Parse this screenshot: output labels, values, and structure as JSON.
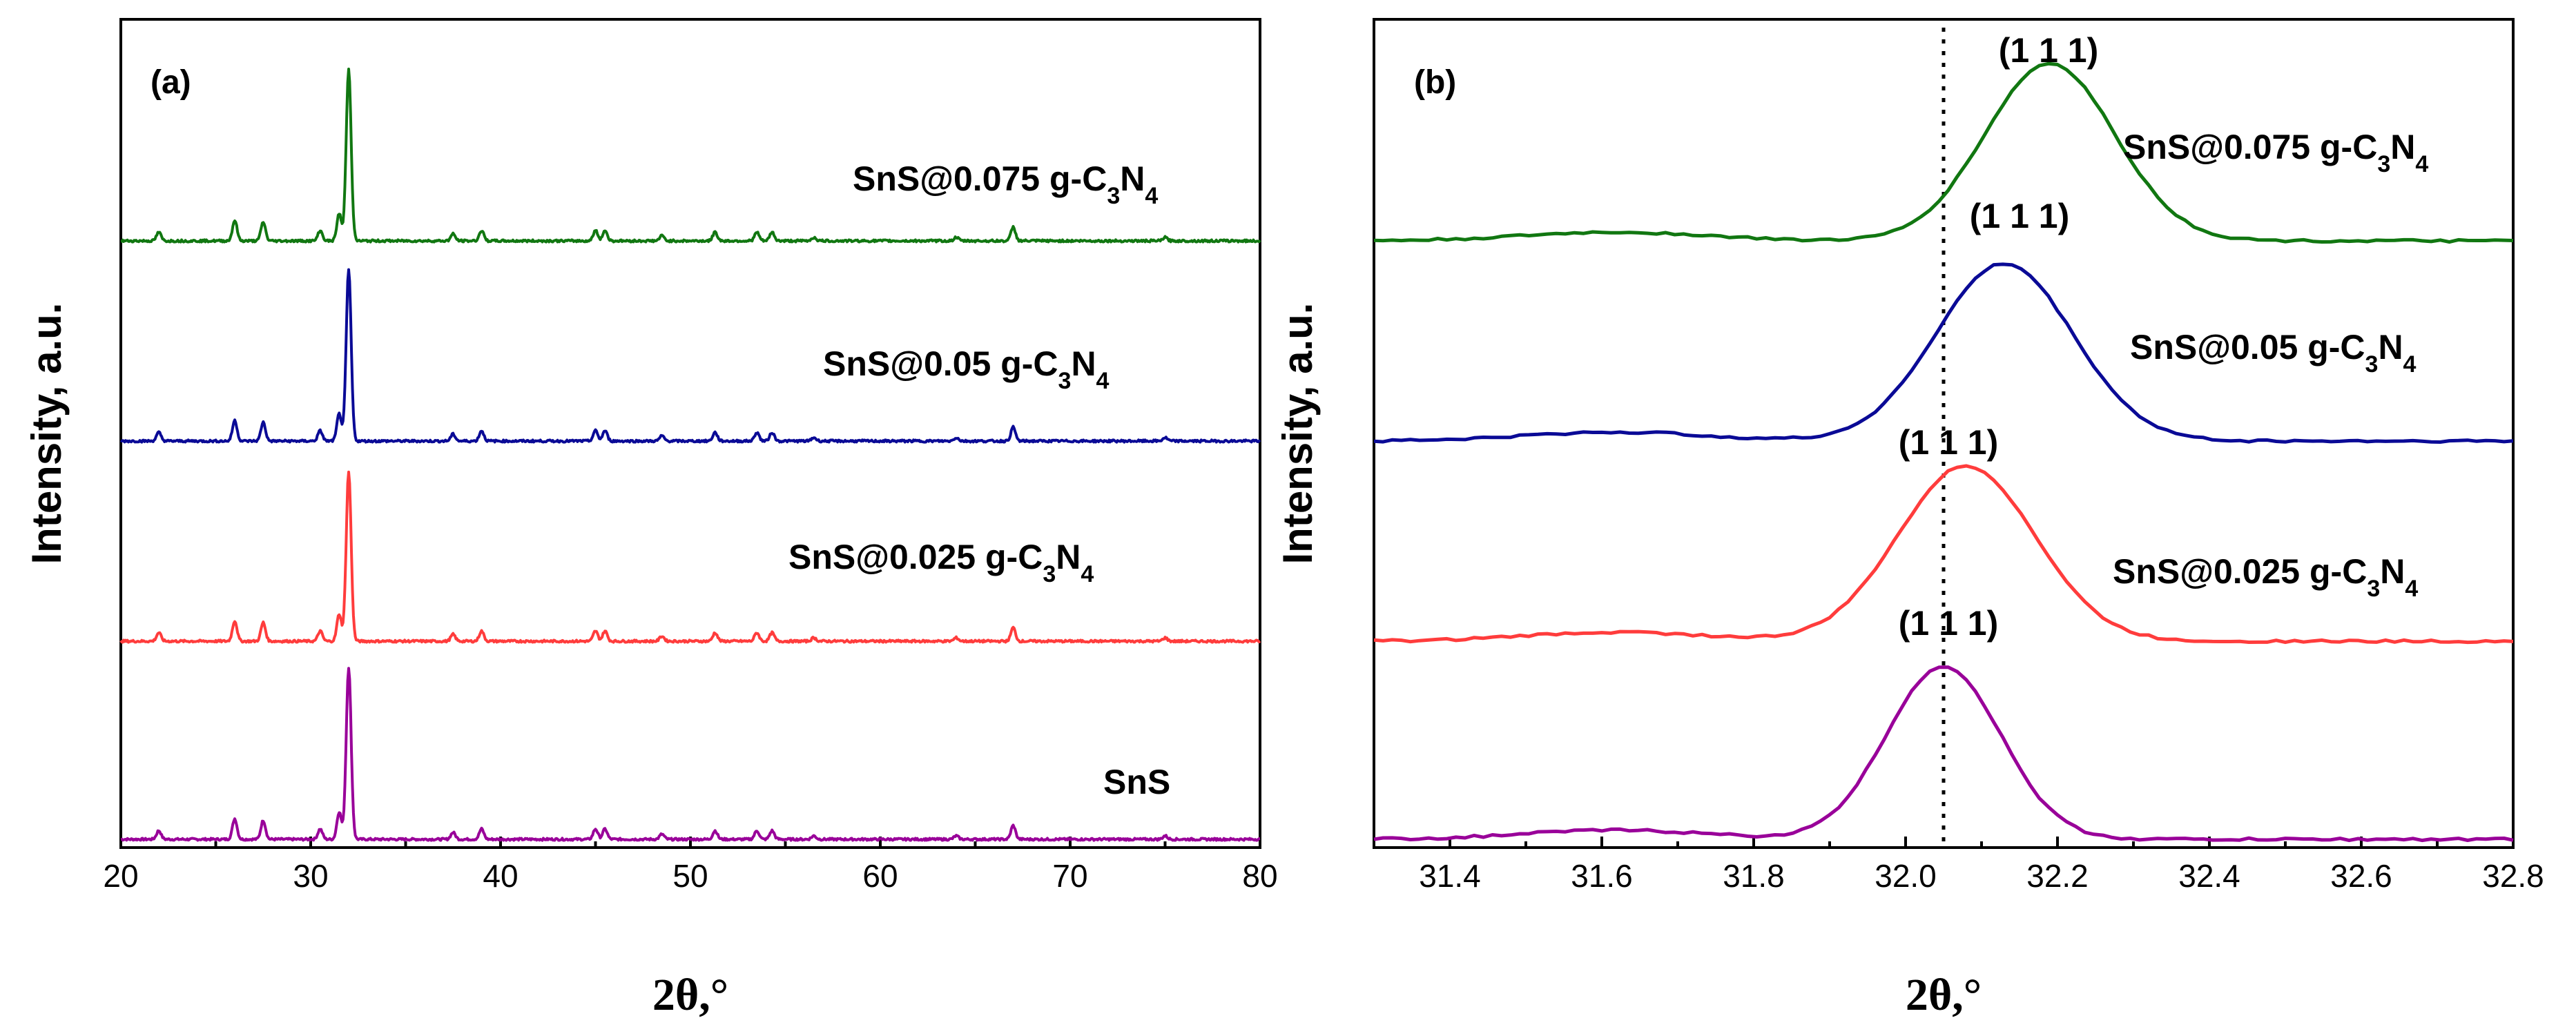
{
  "chart_data": [
    {
      "panel": "(a)",
      "type": "line",
      "xlabel": "2θ,°",
      "ylabel": "Intensity, a.u.",
      "xlim": [
        20,
        80
      ],
      "xticks": [
        "20",
        "30",
        "40",
        "50",
        "60",
        "70",
        "80"
      ],
      "series": [
        {
          "name": "SnS",
          "color": "#990099",
          "baseline": 0.0,
          "scale": 0.95
        },
        {
          "name": "SnS@0.025 g-C3N4",
          "color": "#ff3c3c",
          "baseline": 1.0,
          "scale": 0.92
        },
        {
          "name": "SnS@0.05 g-C3N4",
          "color": "#0a0a96",
          "baseline": 2.0,
          "scale": 0.92
        },
        {
          "name": "SnS@0.075 g-C3N4",
          "color": "#117711",
          "baseline": 3.0,
          "scale": 0.92
        }
      ],
      "peaks": [
        {
          "x": 22.0,
          "h": 0.05
        },
        {
          "x": 26.0,
          "h": 0.12
        },
        {
          "x": 27.5,
          "h": 0.11
        },
        {
          "x": 30.5,
          "h": 0.06
        },
        {
          "x": 31.5,
          "h": 0.16
        },
        {
          "x": 32.0,
          "h": 1.0
        },
        {
          "x": 37.5,
          "h": 0.04
        },
        {
          "x": 39.0,
          "h": 0.06
        },
        {
          "x": 45.0,
          "h": 0.06
        },
        {
          "x": 45.5,
          "h": 0.06
        },
        {
          "x": 48.5,
          "h": 0.03
        },
        {
          "x": 51.3,
          "h": 0.05
        },
        {
          "x": 53.5,
          "h": 0.05
        },
        {
          "x": 54.3,
          "h": 0.05
        },
        {
          "x": 56.5,
          "h": 0.02
        },
        {
          "x": 64.0,
          "h": 0.02
        },
        {
          "x": 67.0,
          "h": 0.08
        },
        {
          "x": 75.0,
          "h": 0.02
        }
      ],
      "annotations": {
        "panel_label": "(a)",
        "series_labels": [
          {
            "prefix": "SnS@0.075 g-C",
            "sub1": "3",
            "mid": "N",
            "sub2": "4"
          },
          {
            "prefix": "SnS@0.05 g-C",
            "sub1": "3",
            "mid": "N",
            "sub2": "4"
          },
          {
            "prefix": "SnS@0.025 g-C",
            "sub1": "3",
            "mid": "N",
            "sub2": "4"
          },
          {
            "prefix": "SnS",
            "sub1": "",
            "mid": "",
            "sub2": ""
          }
        ]
      }
    },
    {
      "panel": "(b)",
      "type": "line",
      "xlabel": "2θ,°",
      "ylabel": "Intensity, a.u.",
      "xlim": [
        31.3,
        32.8
      ],
      "xticks": [
        "31.4",
        "31.6",
        "31.8",
        "32.0",
        "32.2",
        "32.4",
        "32.6",
        "32.8"
      ],
      "reference_line_x": 32.05,
      "series": [
        {
          "name": "SnS",
          "color": "#990099",
          "baseline": 0.0,
          "peak_center": 32.05,
          "peak_sigma": 0.075,
          "peak_height": 0.85
        },
        {
          "name": "SnS@0.025 g-C3N4",
          "color": "#ff3c3c",
          "baseline": 1.0,
          "peak_center": 32.08,
          "peak_sigma": 0.09,
          "peak_height": 0.88
        },
        {
          "name": "SnS@0.05 g-C3N4",
          "color": "#0a0a96",
          "baseline": 2.0,
          "peak_center": 32.13,
          "peak_sigma": 0.09,
          "peak_height": 0.9
        },
        {
          "name": "SnS@0.075 g-C3N4",
          "color": "#117711",
          "baseline": 3.0,
          "peak_center": 32.19,
          "peak_sigma": 0.085,
          "peak_height": 0.92
        }
      ],
      "annotations": {
        "panel_label": "(b)",
        "peak_label": "(1 1 1)",
        "series_labels": [
          {
            "prefix": "SnS@0.075 g-C",
            "sub1": "3",
            "mid": "N",
            "sub2": "4"
          },
          {
            "prefix": "SnS@0.05 g-C",
            "sub1": "3",
            "mid": "N",
            "sub2": "4"
          },
          {
            "prefix": "SnS@0.025 g-C",
            "sub1": "3",
            "mid": "N",
            "sub2": "4"
          }
        ]
      }
    }
  ]
}
